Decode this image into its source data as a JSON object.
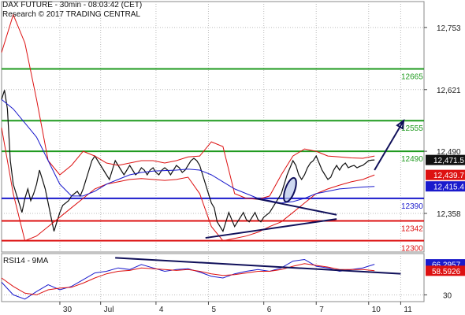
{
  "header": {
    "title": "DAX FUTURE - 30min - 08:03:42 (CET)",
    "subtitle": "Research © 2017 TRADING CENTRAL"
  },
  "chart_data": {
    "type": "line",
    "instrument": "DAX FUTURE",
    "interval": "30min",
    "price_axis": {
      "ticks": [
        12753,
        12621,
        12490,
        12358
      ],
      "ylim": [
        12276,
        12808
      ],
      "grid": true
    },
    "x_axis": {
      "tick_labels": [
        "30",
        "Jul",
        "4",
        "5",
        "6",
        "7",
        "10",
        "11"
      ],
      "grid": true
    },
    "levels": [
      {
        "value": 12665,
        "label": "12665",
        "color": "#1f9a1f"
      },
      {
        "value": 12555,
        "label": "12555",
        "color": "#1f9a1f"
      },
      {
        "value": 12490,
        "label": "12490",
        "color": "#1f9a1f"
      },
      {
        "value": 12390,
        "label": "12390",
        "color": "#1a1acc"
      },
      {
        "value": 12342,
        "label": "12342",
        "color": "#dd1111"
      },
      {
        "value": 12300,
        "label": "12300",
        "color": "#dd1111"
      }
    ],
    "price_tags": [
      {
        "value": 12471.5,
        "label": "12,471.5",
        "bg": "#111111",
        "fg": "#ffffff"
      },
      {
        "value": 12439.7,
        "label": "12,439.7",
        "bg": "#dd1111",
        "fg": "#ffffff"
      },
      {
        "value": 12415.4,
        "label": "12,415.4",
        "bg": "#1a1acc",
        "fg": "#ffffff"
      }
    ],
    "series": [
      {
        "name": "price",
        "color": "#111111",
        "x": [
          0,
          1,
          2,
          3,
          4,
          5,
          6,
          7,
          8,
          9,
          10,
          11,
          12,
          13,
          14,
          15,
          16,
          17,
          18,
          19,
          20,
          21,
          22,
          23,
          24,
          25,
          26,
          27,
          28,
          29,
          30,
          31,
          32,
          33,
          34,
          35,
          36,
          37,
          38,
          39,
          40,
          41,
          42,
          43,
          44,
          45,
          46,
          47,
          48,
          49,
          50,
          51,
          52,
          53,
          54,
          55,
          56,
          57,
          58,
          59,
          60,
          61,
          62,
          63,
          64,
          65,
          66,
          67,
          68,
          69,
          70,
          71,
          72,
          73,
          74,
          75,
          76,
          77,
          78,
          79,
          80,
          81,
          82,
          83,
          84,
          85,
          86,
          87,
          88,
          89,
          90,
          91,
          92,
          93,
          94,
          95,
          96,
          97,
          98,
          99,
          100,
          101,
          102,
          103,
          104,
          105,
          106,
          107,
          108,
          109,
          110,
          111,
          112,
          113,
          114,
          115,
          116,
          117,
          118,
          119,
          120,
          121,
          122,
          123,
          124,
          125,
          126,
          127,
          128
        ],
        "values": [
          12600,
          12620,
          12580,
          12470,
          12420,
          12400,
          12380,
          12360,
          12390,
          12410,
          12385,
          12400,
          12420,
          12450,
          12430,
          12410,
          12380,
          12350,
          12320,
          12340,
          12360,
          12375,
          12380,
          12385,
          12395,
          12400,
          12405,
          12395,
          12410,
          12430,
          12450,
          12470,
          12480,
          12470,
          12460,
          12450,
          12440,
          12430,
          12450,
          12470,
          12460,
          12450,
          12440,
          12450,
          12460,
          12450,
          12440,
          12445,
          12455,
          12450,
          12440,
          12450,
          12455,
          12445,
          12440,
          12450,
          12455,
          12450,
          12440,
          12450,
          12460,
          12455,
          12445,
          12450,
          12460,
          12470,
          12475,
          12470,
          12460,
          12440,
          12420,
          12400,
          12380,
          12370,
          12340,
          12330,
          12320,
          12340,
          12360,
          12345,
          12330,
          12340,
          12350,
          12360,
          12345,
          12340,
          12350,
          12360,
          12345,
          12340,
          12350,
          12355,
          12360,
          12370,
          12380,
          12390,
          12400,
          12420,
          12440,
          12455,
          12470,
          12460,
          12440,
          12430,
          12440,
          12455,
          12465,
          12470,
          12480,
          12465,
          12450,
          12440,
          12430,
          12435,
          12450,
          12460,
          12450,
          12460,
          12465,
          12455,
          12458,
          12460,
          12455,
          12458,
          12460,
          12465,
          12470,
          12471,
          12471.5
        ]
      },
      {
        "name": "",
        "color": "#dd1111",
        "style": "upper-band",
        "x": [
          0,
          4,
          8,
          12,
          16,
          20,
          24,
          28,
          32,
          36,
          40,
          44,
          48,
          52,
          56,
          60,
          64,
          68,
          72,
          76,
          80,
          84,
          88,
          92,
          96,
          100,
          104,
          108,
          112,
          116,
          120,
          124,
          128
        ],
        "values": [
          12700,
          12780,
          12720,
          12600,
          12470,
          12440,
          12460,
          12490,
          12480,
          12465,
          12460,
          12465,
          12470,
          12470,
          12465,
          12470,
          12478,
          12480,
          12510,
          12500,
          12400,
          12390,
          12388,
          12395,
          12440,
          12480,
          12495,
          12490,
          12480,
          12478,
          12476,
          12475,
          12480
        ]
      },
      {
        "name": "",
        "color": "#dd1111",
        "style": "lower-band",
        "x": [
          0,
          4,
          8,
          12,
          16,
          20,
          24,
          28,
          32,
          36,
          40,
          44,
          48,
          52,
          56,
          60,
          64,
          68,
          72,
          76,
          80,
          84,
          88,
          92,
          96,
          100,
          104,
          108,
          112,
          116,
          120,
          124,
          128
        ],
        "values": [
          12540,
          12400,
          12300,
          12310,
          12330,
          12350,
          12370,
          12390,
          12410,
          12420,
          12425,
          12430,
          12432,
          12430,
          12428,
          12430,
          12435,
          12400,
          12330,
          12300,
          12305,
          12310,
          12318,
          12330,
          12340,
          12360,
          12380,
          12400,
          12410,
          12418,
          12425,
          12430,
          12439.7
        ]
      },
      {
        "name": "",
        "color": "#1a1acc",
        "style": "moving-average",
        "x": [
          0,
          4,
          8,
          12,
          16,
          20,
          24,
          28,
          32,
          36,
          40,
          44,
          48,
          52,
          56,
          60,
          64,
          68,
          72,
          76,
          80,
          84,
          88,
          92,
          96,
          100,
          104,
          108,
          112,
          116,
          120,
          124,
          128
        ],
        "values": [
          12600,
          12580,
          12550,
          12520,
          12470,
          12420,
          12395,
          12395,
          12405,
          12420,
          12430,
          12440,
          12445,
          12448,
          12449,
          12450,
          12452,
          12450,
          12440,
          12425,
          12410,
          12400,
          12390,
          12385,
          12380,
          12383,
          12390,
          12400,
          12405,
          12410,
          12412,
          12414,
          12415.4
        ]
      }
    ],
    "annotations": [
      {
        "type": "trendline",
        "color": "#10105a",
        "x": [
          87,
          115
        ],
        "y": [
          12390,
          12355
        ]
      },
      {
        "type": "trendline",
        "color": "#10105a",
        "x": [
          70,
          115
        ],
        "y": [
          12306,
          12346
        ]
      },
      {
        "type": "ellipse",
        "color": "#10105a",
        "x": 99,
        "y": 12408
      },
      {
        "type": "arrow",
        "color": "#10105a",
        "x": [
          128,
          138
        ],
        "y": [
          12450,
          12555
        ]
      }
    ],
    "rsi": {
      "title": "RSI14 - 9MA",
      "ticks": [
        30
      ],
      "ylim": [
        22,
        79
      ],
      "tags": [
        {
          "value": 66.2957,
          "label": "66.2957",
          "bg": "#1a1acc",
          "fg": "#ffffff"
        },
        {
          "value": 58.5926,
          "label": "58.5926",
          "bg": "#dd1111",
          "fg": "#ffffff"
        }
      ],
      "series": [
        {
          "name": "RSI14",
          "color": "#1a1acc",
          "x": [
            0,
            4,
            8,
            12,
            16,
            20,
            24,
            28,
            32,
            36,
            40,
            44,
            48,
            52,
            56,
            60,
            64,
            68,
            72,
            76,
            80,
            84,
            88,
            92,
            96,
            100,
            104,
            108,
            112,
            116,
            120,
            124,
            128
          ],
          "values": [
            45,
            30,
            25,
            34,
            42,
            36,
            40,
            48,
            56,
            58,
            62,
            60,
            66,
            62,
            58,
            60,
            61,
            57,
            52,
            50,
            55,
            58,
            60,
            58,
            62,
            70,
            72,
            64,
            62,
            58,
            60,
            62,
            66.3
          ]
        },
        {
          "name": "9MA",
          "color": "#dd1111",
          "x": [
            0,
            4,
            8,
            12,
            16,
            20,
            24,
            28,
            32,
            36,
            40,
            44,
            48,
            52,
            56,
            60,
            64,
            68,
            72,
            76,
            80,
            84,
            88,
            92,
            96,
            100,
            104,
            108,
            112,
            116,
            120,
            124,
            128
          ],
          "values": [
            50,
            40,
            32,
            30,
            36,
            38,
            39,
            44,
            50,
            55,
            58,
            59,
            62,
            61,
            60,
            59,
            60,
            58,
            55,
            53,
            54,
            56,
            58,
            58,
            60,
            64,
            67,
            65,
            63,
            60,
            60,
            60,
            58.6
          ]
        }
      ],
      "trendline": {
        "color": "#10105a",
        "x": [
          39,
          137
        ],
        "y": [
          74,
          55
        ]
      }
    }
  }
}
